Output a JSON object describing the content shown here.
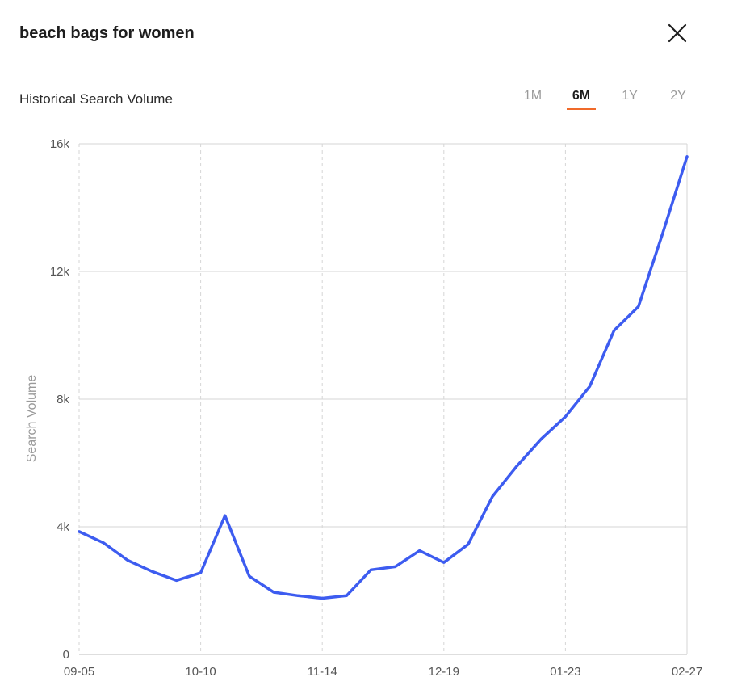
{
  "header": {
    "title": "beach bags for women",
    "subtitle": "Historical Search Volume"
  },
  "ranges": [
    "1M",
    "6M",
    "1Y",
    "2Y"
  ],
  "active_range": "6M",
  "colors": {
    "line": "#3d5cf0",
    "accent": "#f06a2a",
    "grid": "#d6d6d6"
  },
  "icons": {
    "close": "close-icon"
  },
  "chart_data": {
    "type": "line",
    "title": "",
    "xlabel": "",
    "ylabel": "Search Volume",
    "ylim": [
      0,
      16000
    ],
    "yticks": [
      0,
      4000,
      8000,
      12000,
      16000
    ],
    "ytick_labels": [
      "0",
      "4k",
      "8k",
      "12k",
      "16k"
    ],
    "xtick_labels": [
      "09-05",
      "10-10",
      "11-14",
      "12-19",
      "01-23",
      "02-27"
    ],
    "grid": true,
    "series": [
      {
        "name": "",
        "values": [
          3850,
          3500,
          2950,
          2600,
          2320,
          2560,
          4350,
          2450,
          1950,
          1840,
          1760,
          1840,
          2650,
          2750,
          3250,
          2880,
          3450,
          4950,
          5900,
          6750,
          7450,
          8400,
          10150,
          10900,
          13200,
          15600
        ]
      }
    ]
  }
}
